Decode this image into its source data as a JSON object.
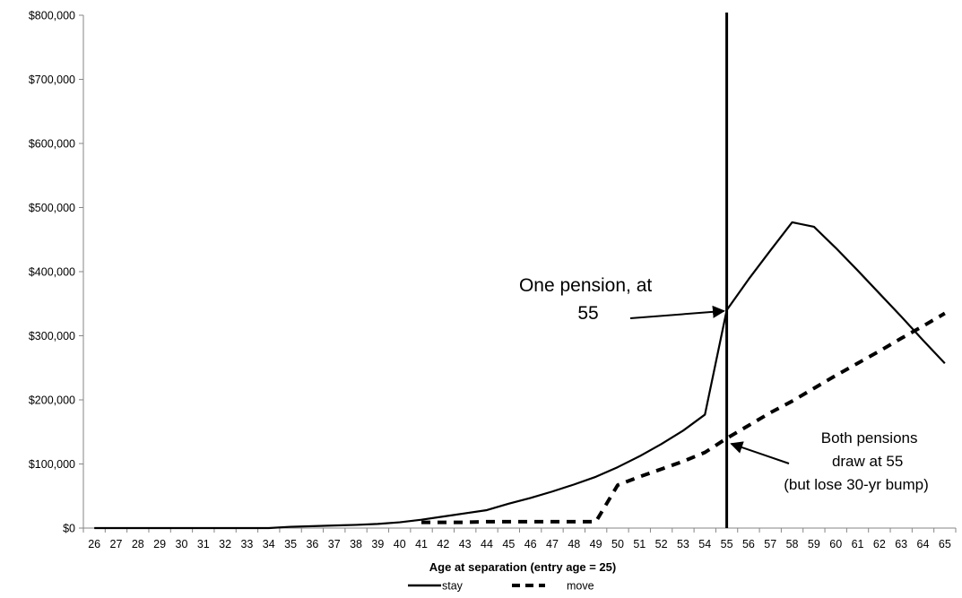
{
  "chart_data": {
    "type": "line",
    "xlabel": "Age at separation (entry age = 25)",
    "ylabel": "",
    "ylim": [
      0,
      800000
    ],
    "yticks": [
      "$0",
      "$100,000",
      "$200,000",
      "$300,000",
      "$400,000",
      "$500,000",
      "$600,000",
      "$700,000",
      "$800,000"
    ],
    "x": [
      26,
      27,
      28,
      29,
      30,
      31,
      32,
      33,
      34,
      35,
      36,
      37,
      38,
      39,
      40,
      41,
      42,
      43,
      44,
      45,
      46,
      47,
      48,
      49,
      50,
      51,
      52,
      53,
      54,
      55,
      56,
      57,
      58,
      59,
      60,
      61,
      62,
      63,
      64,
      65
    ],
    "series": [
      {
        "name": "stay",
        "style": "solid",
        "values": [
          0,
          0,
          0,
          0,
          0,
          0,
          0,
          0,
          0,
          2000,
          3000,
          4000,
          5000,
          6500,
          9000,
          13000,
          18000,
          23000,
          28000,
          38000,
          47000,
          57000,
          68000,
          80000,
          95000,
          112000,
          131000,
          152000,
          177000,
          340000,
          388000,
          433000,
          477000,
          470000,
          437000,
          402000,
          366000,
          330000,
          293000,
          257000
        ]
      },
      {
        "name": "move",
        "style": "dashed",
        "values": [
          null,
          null,
          null,
          null,
          null,
          null,
          null,
          null,
          null,
          null,
          null,
          null,
          null,
          null,
          null,
          9000,
          9000,
          9000,
          10000,
          10000,
          10000,
          10000,
          10000,
          10000,
          67000,
          80000,
          92000,
          104000,
          118000,
          140000,
          160000,
          180000,
          198000,
          218000,
          238000,
          257000,
          276000,
          296000,
          315000,
          335000
        ]
      }
    ],
    "vertical_line_x": 55,
    "grid": false,
    "legend_position": "bottom",
    "annotations": [
      {
        "lines": [
          "One pension, at",
          "55"
        ],
        "arrow_to": {
          "x": 55,
          "y": 340000
        }
      },
      {
        "lines": [
          "Both pensions",
          "draw at 55",
          "(but lose 30-yr bump)"
        ],
        "arrow_to": {
          "x": 55,
          "y": 140000
        }
      }
    ]
  }
}
